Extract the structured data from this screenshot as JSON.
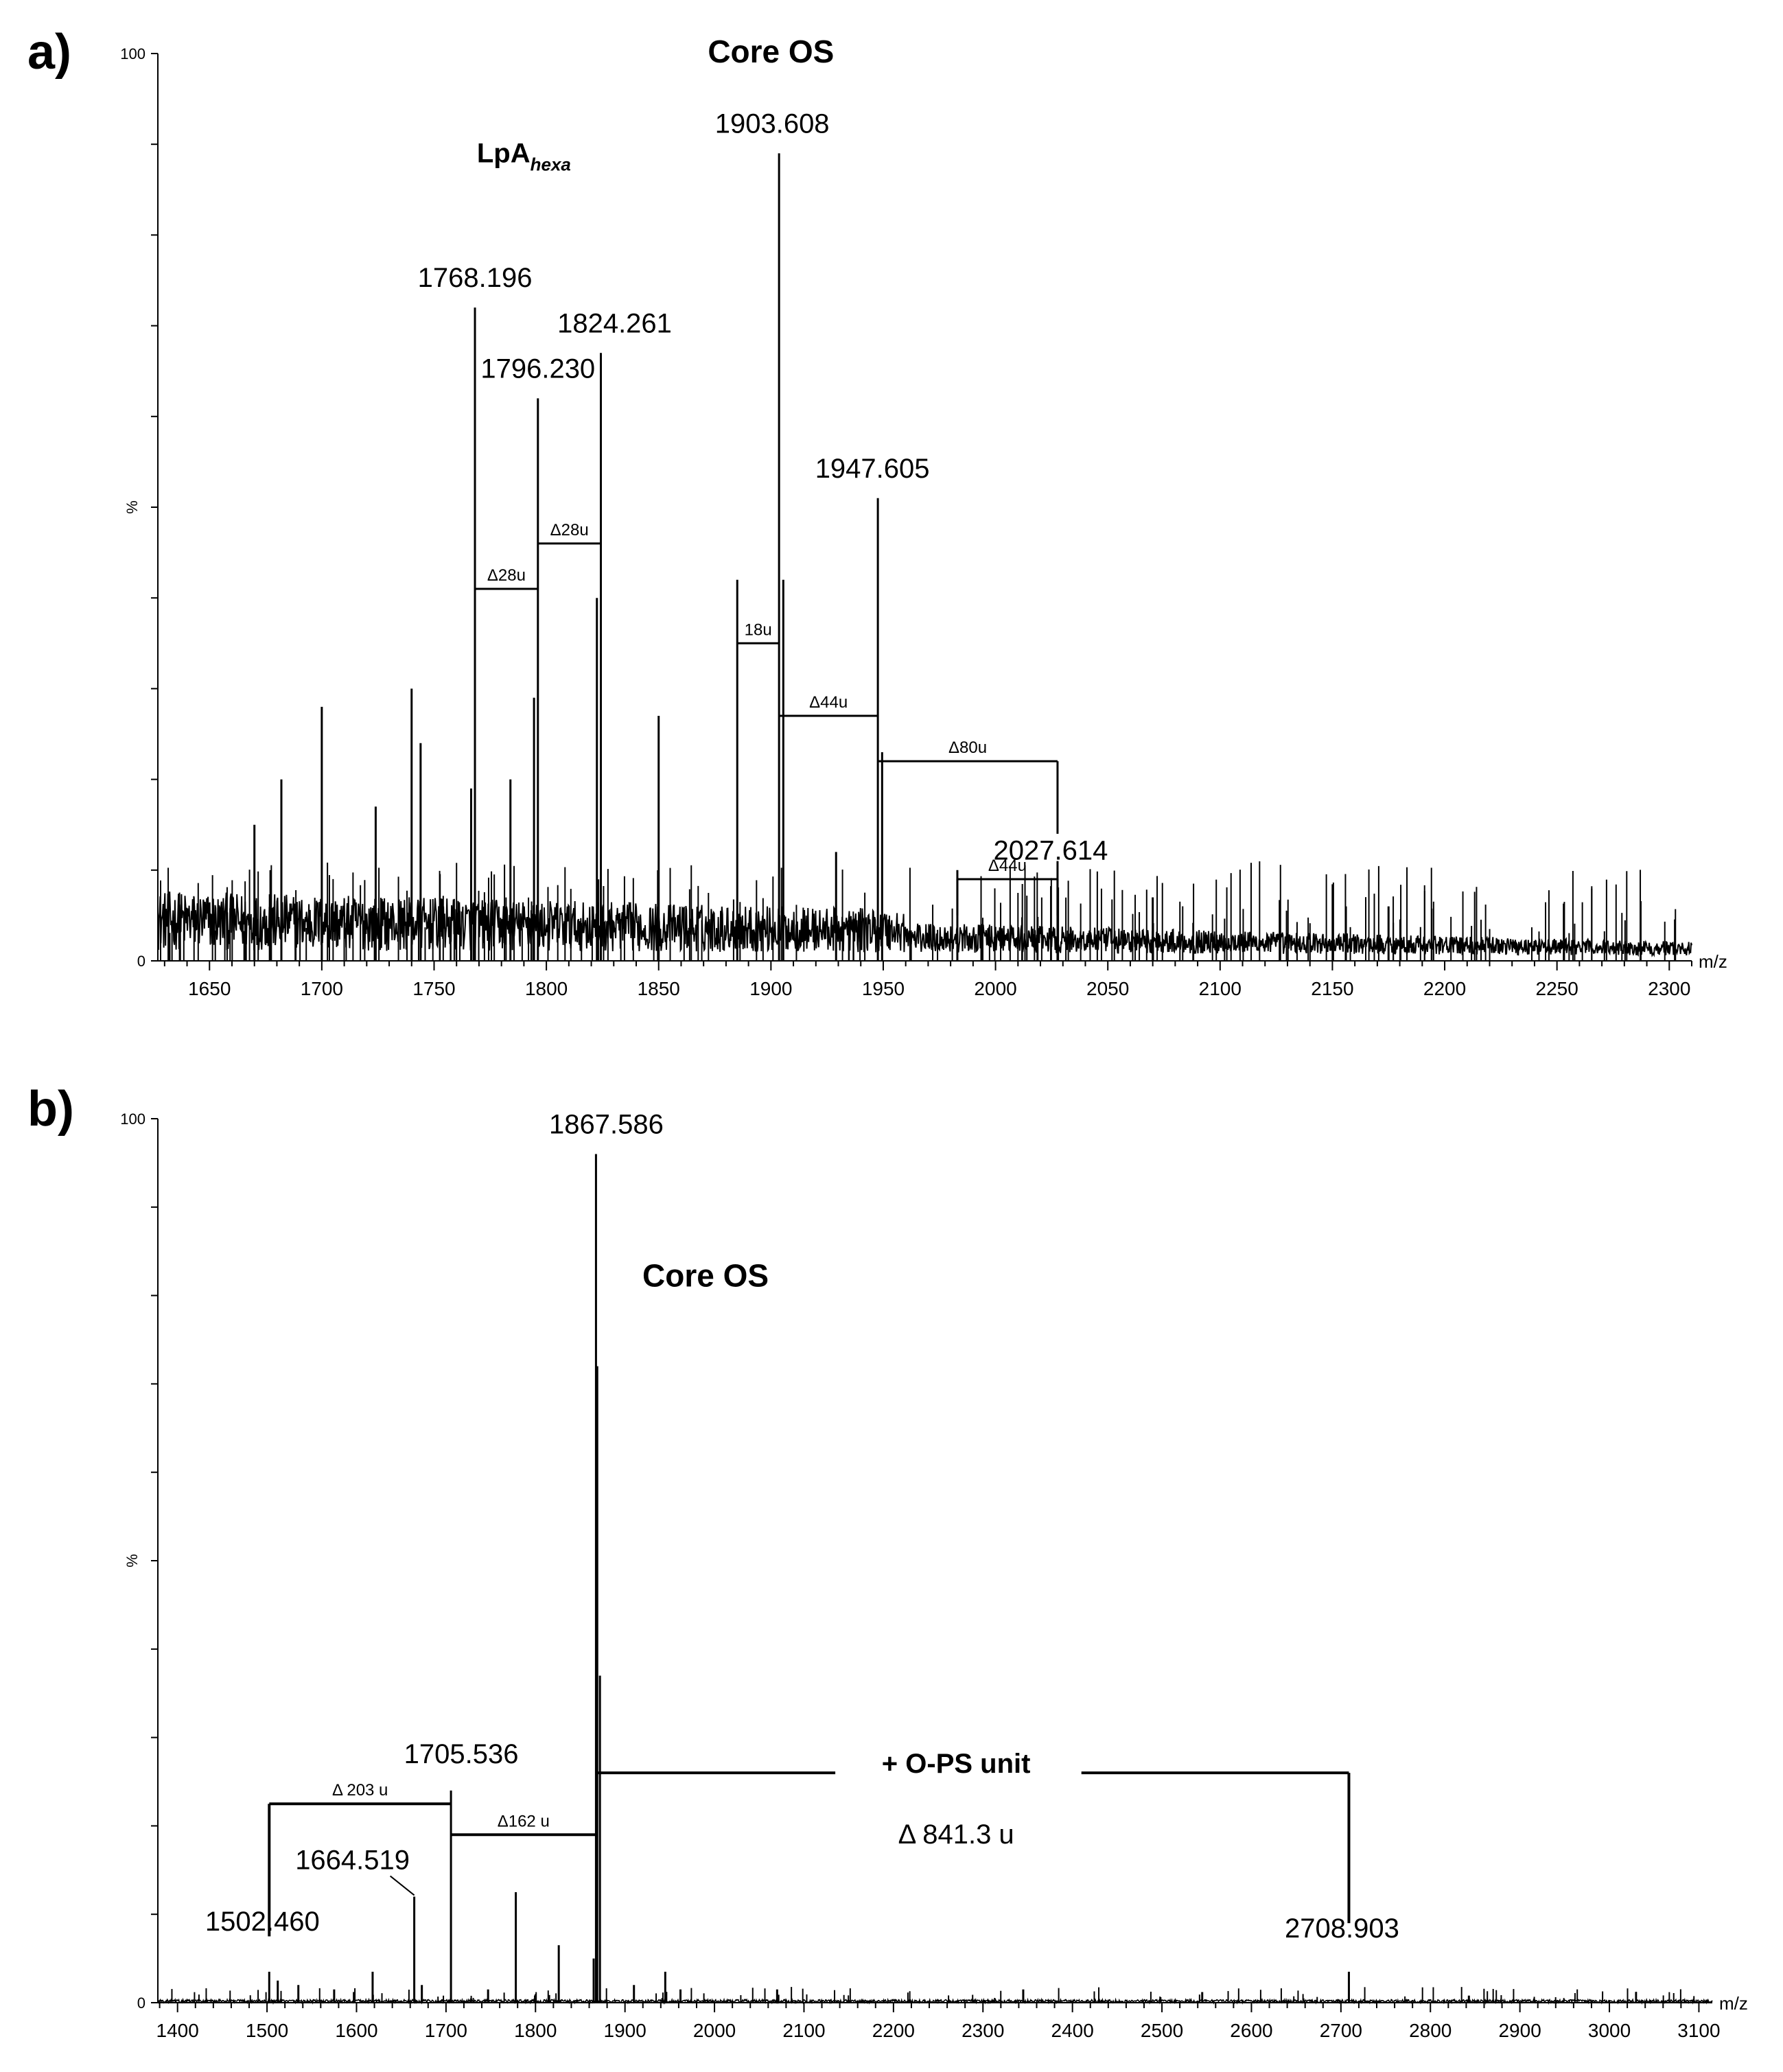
{
  "chart_data": [
    {
      "panel": "a)",
      "type": "line",
      "title": "",
      "xlabel": "m/z",
      "ylabel": "%",
      "xlim": [
        1627,
        2310
      ],
      "ylim": [
        0,
        100
      ],
      "x_ticks": [
        1650,
        1700,
        1750,
        1800,
        1850,
        1900,
        1950,
        2000,
        2050,
        2100,
        2150,
        2200,
        2250,
        2300
      ],
      "y_tick_labels": [
        "0",
        "100"
      ],
      "annotations": [
        {
          "text": "Core OS",
          "x": 1900,
          "y": 99,
          "style": "bold"
        },
        {
          "text": "LpA",
          "sub": "hexa",
          "x": 1790,
          "y": 88,
          "style": "bold"
        }
      ],
      "peaks": [
        {
          "x": 1670.0,
          "y": 15
        },
        {
          "x": 1682.0,
          "y": 20
        },
        {
          "x": 1700.0,
          "y": 28
        },
        {
          "x": 1724.0,
          "y": 17
        },
        {
          "x": 1740.0,
          "y": 30
        },
        {
          "x": 1744.0,
          "y": 24
        },
        {
          "x": 1766.5,
          "y": 19
        },
        {
          "x": 1768.196,
          "y": 72,
          "label": "1768.196"
        },
        {
          "x": 1784.0,
          "y": 20
        },
        {
          "x": 1794.5,
          "y": 29
        },
        {
          "x": 1796.23,
          "y": 62,
          "label": "1796.230"
        },
        {
          "x": 1822.5,
          "y": 40
        },
        {
          "x": 1824.261,
          "y": 67,
          "label": "1824.261"
        },
        {
          "x": 1850.0,
          "y": 27
        },
        {
          "x": 1885.0,
          "y": 42
        },
        {
          "x": 1903.608,
          "y": 89,
          "label": "1903.608"
        },
        {
          "x": 1905.5,
          "y": 42
        },
        {
          "x": 1929.0,
          "y": 12
        },
        {
          "x": 1947.605,
          "y": 51,
          "label": "1947.605"
        },
        {
          "x": 1949.5,
          "y": 23
        },
        {
          "x": 1983.0,
          "y": 10
        },
        {
          "x": 2027.614,
          "y": 11,
          "label": "2027.614"
        },
        {
          "x": 2070.0,
          "y": 7
        },
        {
          "x": 2156.0,
          "y": 6
        },
        {
          "x": 2175.0,
          "y": 6
        }
      ],
      "mass_differences": [
        {
          "label": "Δ28u",
          "from": 1768.196,
          "to": 1796.23,
          "y": 41
        },
        {
          "label": "Δ28u",
          "from": 1796.23,
          "to": 1824.261,
          "y": 46
        },
        {
          "label": "18u",
          "from": 1885.0,
          "to": 1903.608,
          "y": 35
        },
        {
          "label": "Δ44u",
          "from": 1903.608,
          "to": 1947.605,
          "y": 27
        },
        {
          "label": "Δ80u",
          "from": 1947.605,
          "to": 2027.614,
          "y": 22
        },
        {
          "label": "Δ44u",
          "from": 1983.0,
          "to": 2027.614,
          "y": 9
        }
      ]
    },
    {
      "panel": "b)",
      "type": "line",
      "title": "",
      "xlabel": "m/z",
      "ylabel": "%",
      "xlim": [
        1378,
        3115
      ],
      "ylim": [
        0,
        100
      ],
      "x_ticks": [
        1400,
        1500,
        1600,
        1700,
        1800,
        1900,
        2000,
        2100,
        2200,
        2300,
        2400,
        2500,
        2600,
        2700,
        2800,
        2900,
        3000,
        3100
      ],
      "y_tick_labels": [
        "0",
        "100"
      ],
      "annotations": [
        {
          "text": "Core OS",
          "x": 1990,
          "y": 81,
          "style": "bold"
        },
        {
          "text": "+ O-PS unit",
          "x": 2270,
          "y": 26,
          "style": "bold"
        },
        {
          "text": "Δ 841.3 u",
          "x": 2270,
          "y": 18,
          "style": "normal"
        }
      ],
      "peaks": [
        {
          "x": 1502.46,
          "y": 3.5,
          "label": "1502.460"
        },
        {
          "x": 1512.0,
          "y": 2.5
        },
        {
          "x": 1535.0,
          "y": 2
        },
        {
          "x": 1575.0,
          "y": 1.5
        },
        {
          "x": 1618.0,
          "y": 3.5
        },
        {
          "x": 1664.519,
          "y": 12,
          "label": "1664.519"
        },
        {
          "x": 1673.0,
          "y": 2
        },
        {
          "x": 1705.536,
          "y": 24,
          "label": "1705.536"
        },
        {
          "x": 1747.0,
          "y": 1.5
        },
        {
          "x": 1778.0,
          "y": 12.5
        },
        {
          "x": 1826.0,
          "y": 6.5
        },
        {
          "x": 1865.0,
          "y": 5
        },
        {
          "x": 1867.586,
          "y": 96,
          "label": "1867.586"
        },
        {
          "x": 1869.0,
          "y": 72
        },
        {
          "x": 1872.0,
          "y": 37
        },
        {
          "x": 1910.0,
          "y": 2
        },
        {
          "x": 1945.0,
          "y": 3.5
        },
        {
          "x": 1962.0,
          "y": 1.5
        },
        {
          "x": 2070.0,
          "y": 1.5
        },
        {
          "x": 2345.0,
          "y": 1.5
        },
        {
          "x": 2545.0,
          "y": 1.2
        },
        {
          "x": 2708.903,
          "y": 3.5,
          "label": "2708.903"
        },
        {
          "x": 2843.0,
          "y": 0.8
        }
      ],
      "mass_differences": [
        {
          "label": "Δ 203 u",
          "from": 1502.46,
          "to": 1705.536,
          "y": 22.5
        },
        {
          "label": "Δ162 u",
          "from": 1705.536,
          "to": 1867.586,
          "y": 19
        },
        {
          "label": "",
          "from": 1867.586,
          "to": 2708.903,
          "y": 26
        }
      ]
    }
  ]
}
